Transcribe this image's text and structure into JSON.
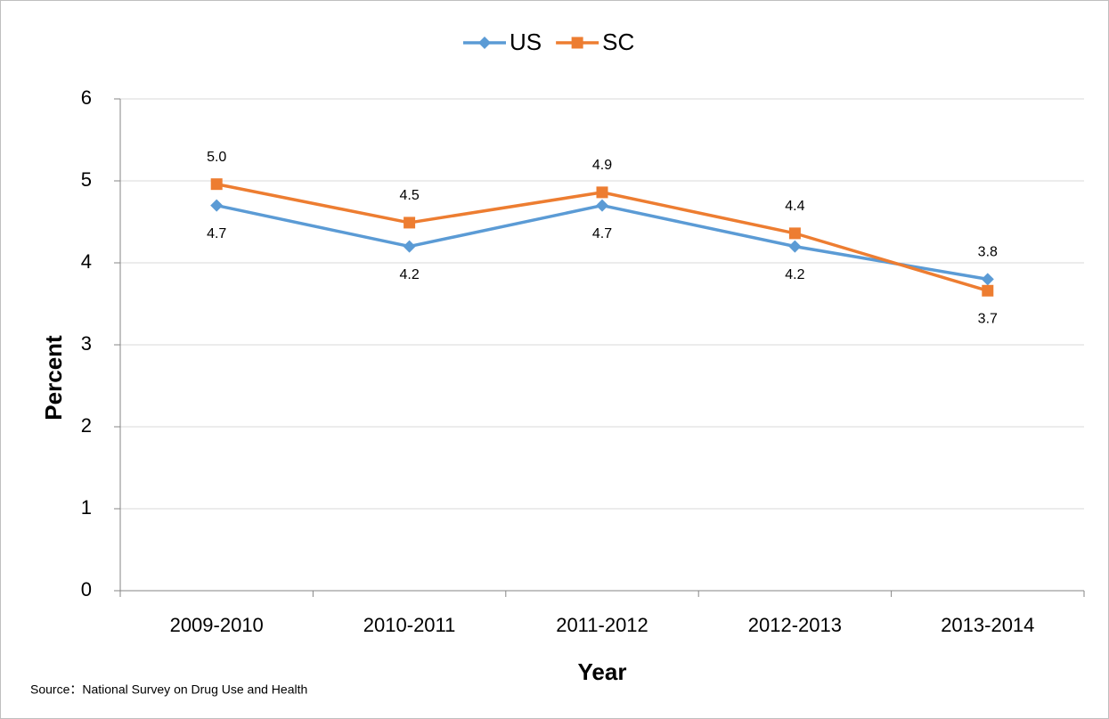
{
  "chart_data": {
    "type": "line",
    "categories": [
      "2009-2010",
      "2010-2011",
      "2011-2012",
      "2012-2013",
      "2013-2014"
    ],
    "series": [
      {
        "name": "US",
        "color": "#5b9bd5",
        "marker": "diamond",
        "values": [
          4.7,
          4.2,
          4.7,
          4.2,
          3.8
        ]
      },
      {
        "name": "SC",
        "color": "#ed7d31",
        "marker": "square",
        "values": [
          4.96,
          4.49,
          4.86,
          4.36,
          3.66
        ],
        "value_labels": [
          "5.0",
          "4.5",
          "4.9",
          "4.4",
          "3.7"
        ]
      }
    ],
    "ylim": [
      0,
      6
    ],
    "yticks": [
      0,
      1,
      2,
      3,
      4,
      5,
      6
    ],
    "grid": true,
    "y_label": "Percent",
    "x_label": "Year",
    "legend": "top",
    "source": "Source：National Survey on Drug Use and Health"
  }
}
